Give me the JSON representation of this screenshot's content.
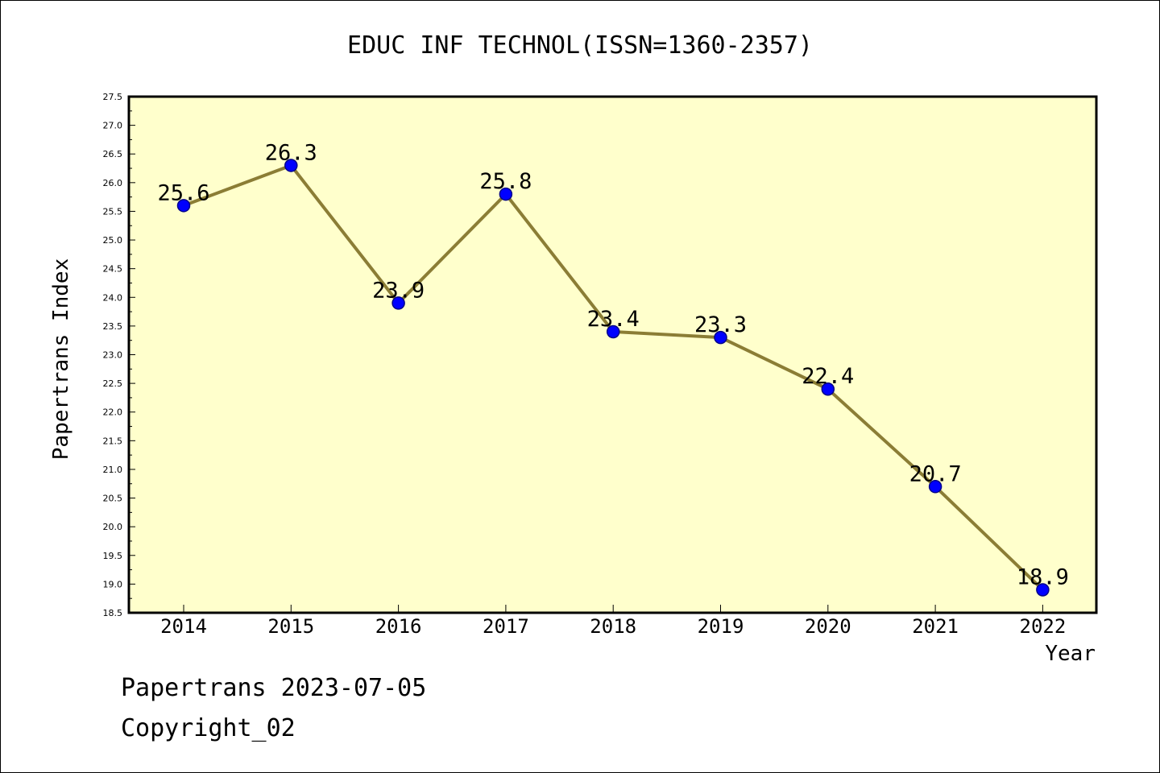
{
  "chart_data": {
    "type": "line",
    "title": "EDUC INF TECHNOL(ISSN=1360-2357)",
    "xlabel": "Year",
    "ylabel": "Papertrans Index",
    "categories": [
      "2014",
      "2015",
      "2016",
      "2017",
      "2018",
      "2019",
      "2020",
      "2021",
      "2022"
    ],
    "values": [
      25.6,
      26.3,
      23.9,
      25.8,
      23.4,
      23.3,
      22.4,
      20.7,
      18.9
    ],
    "data_labels": [
      "25.6",
      "26.3",
      "23.9",
      "25.8",
      "23.4",
      "23.3",
      "22.4",
      "20.7",
      "18.9"
    ],
    "ylim": [
      18.5,
      27.5
    ],
    "yticks": [
      "18.5",
      "19.0",
      "19.5",
      "20.0",
      "20.5",
      "21.0",
      "21.5",
      "22.0",
      "22.5",
      "23.0",
      "23.5",
      "24.0",
      "24.5",
      "25.0",
      "25.5",
      "26.0",
      "26.5",
      "27.0",
      "27.5"
    ],
    "grid": false,
    "legend": "none",
    "colors": {
      "plot_background": "#ffffcc",
      "line": "#8b7d35",
      "marker": "#0000ff",
      "axis": "#000000"
    }
  },
  "footer": {
    "line1": "Papertrans 2023-07-05",
    "line2": "Copyright_02"
  }
}
